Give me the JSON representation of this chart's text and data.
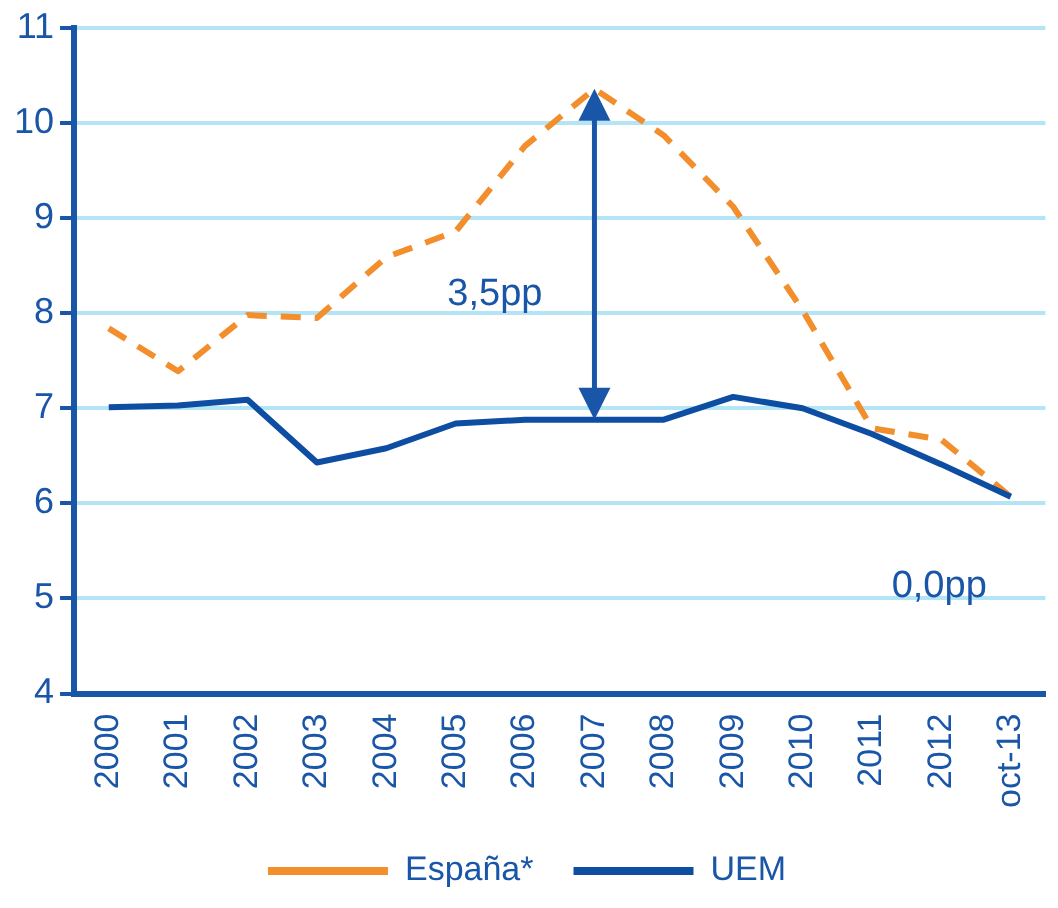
{
  "chart_data": {
    "type": "line",
    "categories": [
      "2000",
      "2001",
      "2002",
      "2003",
      "2004",
      "2005",
      "2006",
      "2007",
      "2008",
      "2009",
      "2010",
      "2011",
      "2012",
      "oct-13"
    ],
    "series": [
      {
        "name": "España*",
        "color": "#f28e2b",
        "line_style": "dashed",
        "values": [
          7.84,
          7.39,
          7.98,
          7.95,
          8.59,
          8.86,
          9.76,
          10.36,
          9.87,
          9.12,
          8.03,
          6.79,
          6.67,
          6.07
        ]
      },
      {
        "name": "UEM",
        "color": "#0d4ea3",
        "line_style": "solid",
        "values": [
          7.01,
          7.03,
          7.09,
          6.43,
          6.58,
          6.84,
          6.88,
          6.88,
          6.88,
          7.12,
          7.0,
          6.73,
          6.41,
          6.07
        ]
      }
    ],
    "ylim": [
      4,
      11
    ],
    "yticks": [
      4,
      5,
      6,
      7,
      8,
      9,
      10,
      11
    ],
    "grid": "y",
    "legend": "bottom",
    "marker": "none",
    "annotations": [
      "3,5pp",
      "0,0pp"
    ]
  }
}
